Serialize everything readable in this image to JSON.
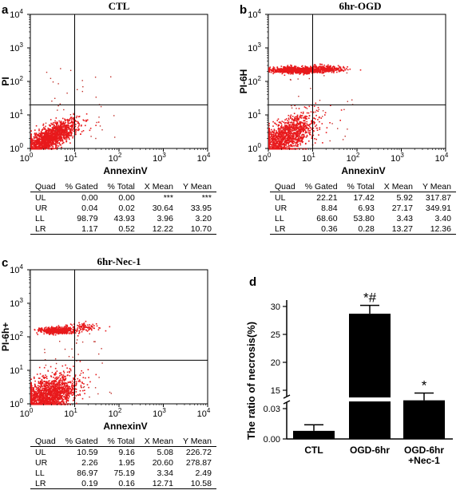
{
  "columns": [
    "Quad",
    "% Gated",
    "% Total",
    "X Mean",
    "Y Mean"
  ],
  "chart_data": [
    {
      "type": "scatter",
      "panel": "a",
      "title": "CTL",
      "xlabel": "AnnexinV",
      "ylabel": "PI",
      "x_scale": "log",
      "y_scale": "log",
      "xlim": [
        1,
        10000
      ],
      "ylim": [
        1,
        10000
      ],
      "gate_x": 10,
      "gate_y": 20,
      "x_ticks": [
        "10^0",
        "10^1",
        "10^2",
        "10^3",
        "10^4"
      ],
      "y_ticks": [
        "10^0",
        "10^1",
        "10^2",
        "10^3",
        "10^4"
      ],
      "clusters": [
        {
          "name": "LL",
          "cx": 3.96,
          "cy": 3.2,
          "sx": 0.3,
          "sy": 0.25,
          "n": 1500,
          "rho": 0.75
        }
      ],
      "stats": [
        {
          "quad": "UL",
          "gated": "0.00",
          "total": "0.00",
          "xmean": "***",
          "ymean": "***"
        },
        {
          "quad": "UR",
          "gated": "0.04",
          "total": "0.02",
          "xmean": "30.64",
          "ymean": "33.95"
        },
        {
          "quad": "LL",
          "gated": "98.79",
          "total": "43.93",
          "xmean": "3.96",
          "ymean": "3.20"
        },
        {
          "quad": "LR",
          "gated": "1.17",
          "total": "0.52",
          "xmean": "12.22",
          "ymean": "10.70"
        }
      ]
    },
    {
      "type": "scatter",
      "panel": "b",
      "title": "6hr-OGD",
      "xlabel": "AnnexinV",
      "ylabel": "PI-6H",
      "x_scale": "log",
      "y_scale": "log",
      "xlim": [
        1,
        10000
      ],
      "ylim": [
        1,
        10000
      ],
      "gate_x": 10,
      "gate_y": 20,
      "x_ticks": [
        "10^0",
        "10^1",
        "10^2",
        "10^3",
        "10^4"
      ],
      "y_ticks": [
        "10^0",
        "10^1",
        "10^2",
        "10^3",
        "10^4"
      ],
      "clusters": [
        {
          "name": "LL",
          "cx": 3.43,
          "cy": 3.4,
          "sx": 0.33,
          "sy": 0.3,
          "n": 1300,
          "rho": 0.55
        },
        {
          "name": "UL",
          "cx": 5.92,
          "cy": 317.87,
          "sx": 0.3,
          "sy": 0.05,
          "n": 800,
          "rho": 0.0
        },
        {
          "name": "UR",
          "cx": 27.17,
          "cy": 349.91,
          "sx": 0.22,
          "sy": 0.05,
          "n": 300,
          "rho": 0.0
        }
      ],
      "stats": [
        {
          "quad": "UL",
          "gated": "22.21",
          "total": "17.42",
          "xmean": "5.92",
          "ymean": "317.87"
        },
        {
          "quad": "UR",
          "gated": "8.84",
          "total": "6.93",
          "xmean": "27.17",
          "ymean": "349.91"
        },
        {
          "quad": "LL",
          "gated": "68.60",
          "total": "53.80",
          "xmean": "3.43",
          "ymean": "3.40"
        },
        {
          "quad": "LR",
          "gated": "0.36",
          "total": "0.28",
          "xmean": "13.27",
          "ymean": "12.36"
        }
      ]
    },
    {
      "type": "scatter",
      "panel": "c",
      "title": "6hr-Nec-1",
      "xlabel": "AnnexinV",
      "ylabel": "PI-6h+",
      "x_scale": "log",
      "y_scale": "log",
      "xlim": [
        1,
        10000
      ],
      "ylim": [
        1,
        10000
      ],
      "gate_x": 10,
      "gate_y": 20,
      "x_ticks": [
        "10^0",
        "10^1",
        "10^2",
        "10^3",
        "10^4"
      ],
      "y_ticks": [
        "10^0",
        "10^1",
        "10^2",
        "10^3",
        "10^4"
      ],
      "clusters": [
        {
          "name": "LL",
          "cx": 3.34,
          "cy": 2.49,
          "sx": 0.33,
          "sy": 0.3,
          "n": 1700,
          "rho": 0.45
        },
        {
          "name": "UL",
          "cx": 5.08,
          "cy": 226.72,
          "sx": 0.2,
          "sy": 0.05,
          "n": 500,
          "rho": 0.0
        },
        {
          "name": "UR",
          "cx": 20.6,
          "cy": 278.87,
          "sx": 0.2,
          "sy": 0.06,
          "n": 100,
          "rho": 0.0
        }
      ],
      "stats": [
        {
          "quad": "UL",
          "gated": "10.59",
          "total": "9.16",
          "xmean": "5.08",
          "ymean": "226.72"
        },
        {
          "quad": "UR",
          "gated": "2.26",
          "total": "1.95",
          "xmean": "20.60",
          "ymean": "278.87"
        },
        {
          "quad": "LL",
          "gated": "86.97",
          "total": "75.19",
          "xmean": "3.34",
          "ymean": "2.49"
        },
        {
          "quad": "LR",
          "gated": "0.19",
          "total": "0.16",
          "xmean": "12.71",
          "ymean": "10.58"
        }
      ]
    },
    {
      "type": "bar",
      "panel": "d",
      "title": "",
      "categories": [
        "CTL",
        "OGD-6hr",
        "OGD-6hr\n+Nec-1"
      ],
      "values": [
        0.008,
        28.7,
        13.2
      ],
      "errors": [
        0.006,
        1.5,
        1.3
      ],
      "annotations": [
        "",
        "*#",
        "*"
      ],
      "ylabel": "The ratio of necrosis(%)",
      "y_ticks": [
        "0.00",
        "0.03",
        "15",
        "20",
        "25",
        "30"
      ],
      "y_axis_break": [
        0.03,
        15
      ],
      "ylim": [
        0,
        31
      ],
      "bar_color": "#000000"
    }
  ]
}
